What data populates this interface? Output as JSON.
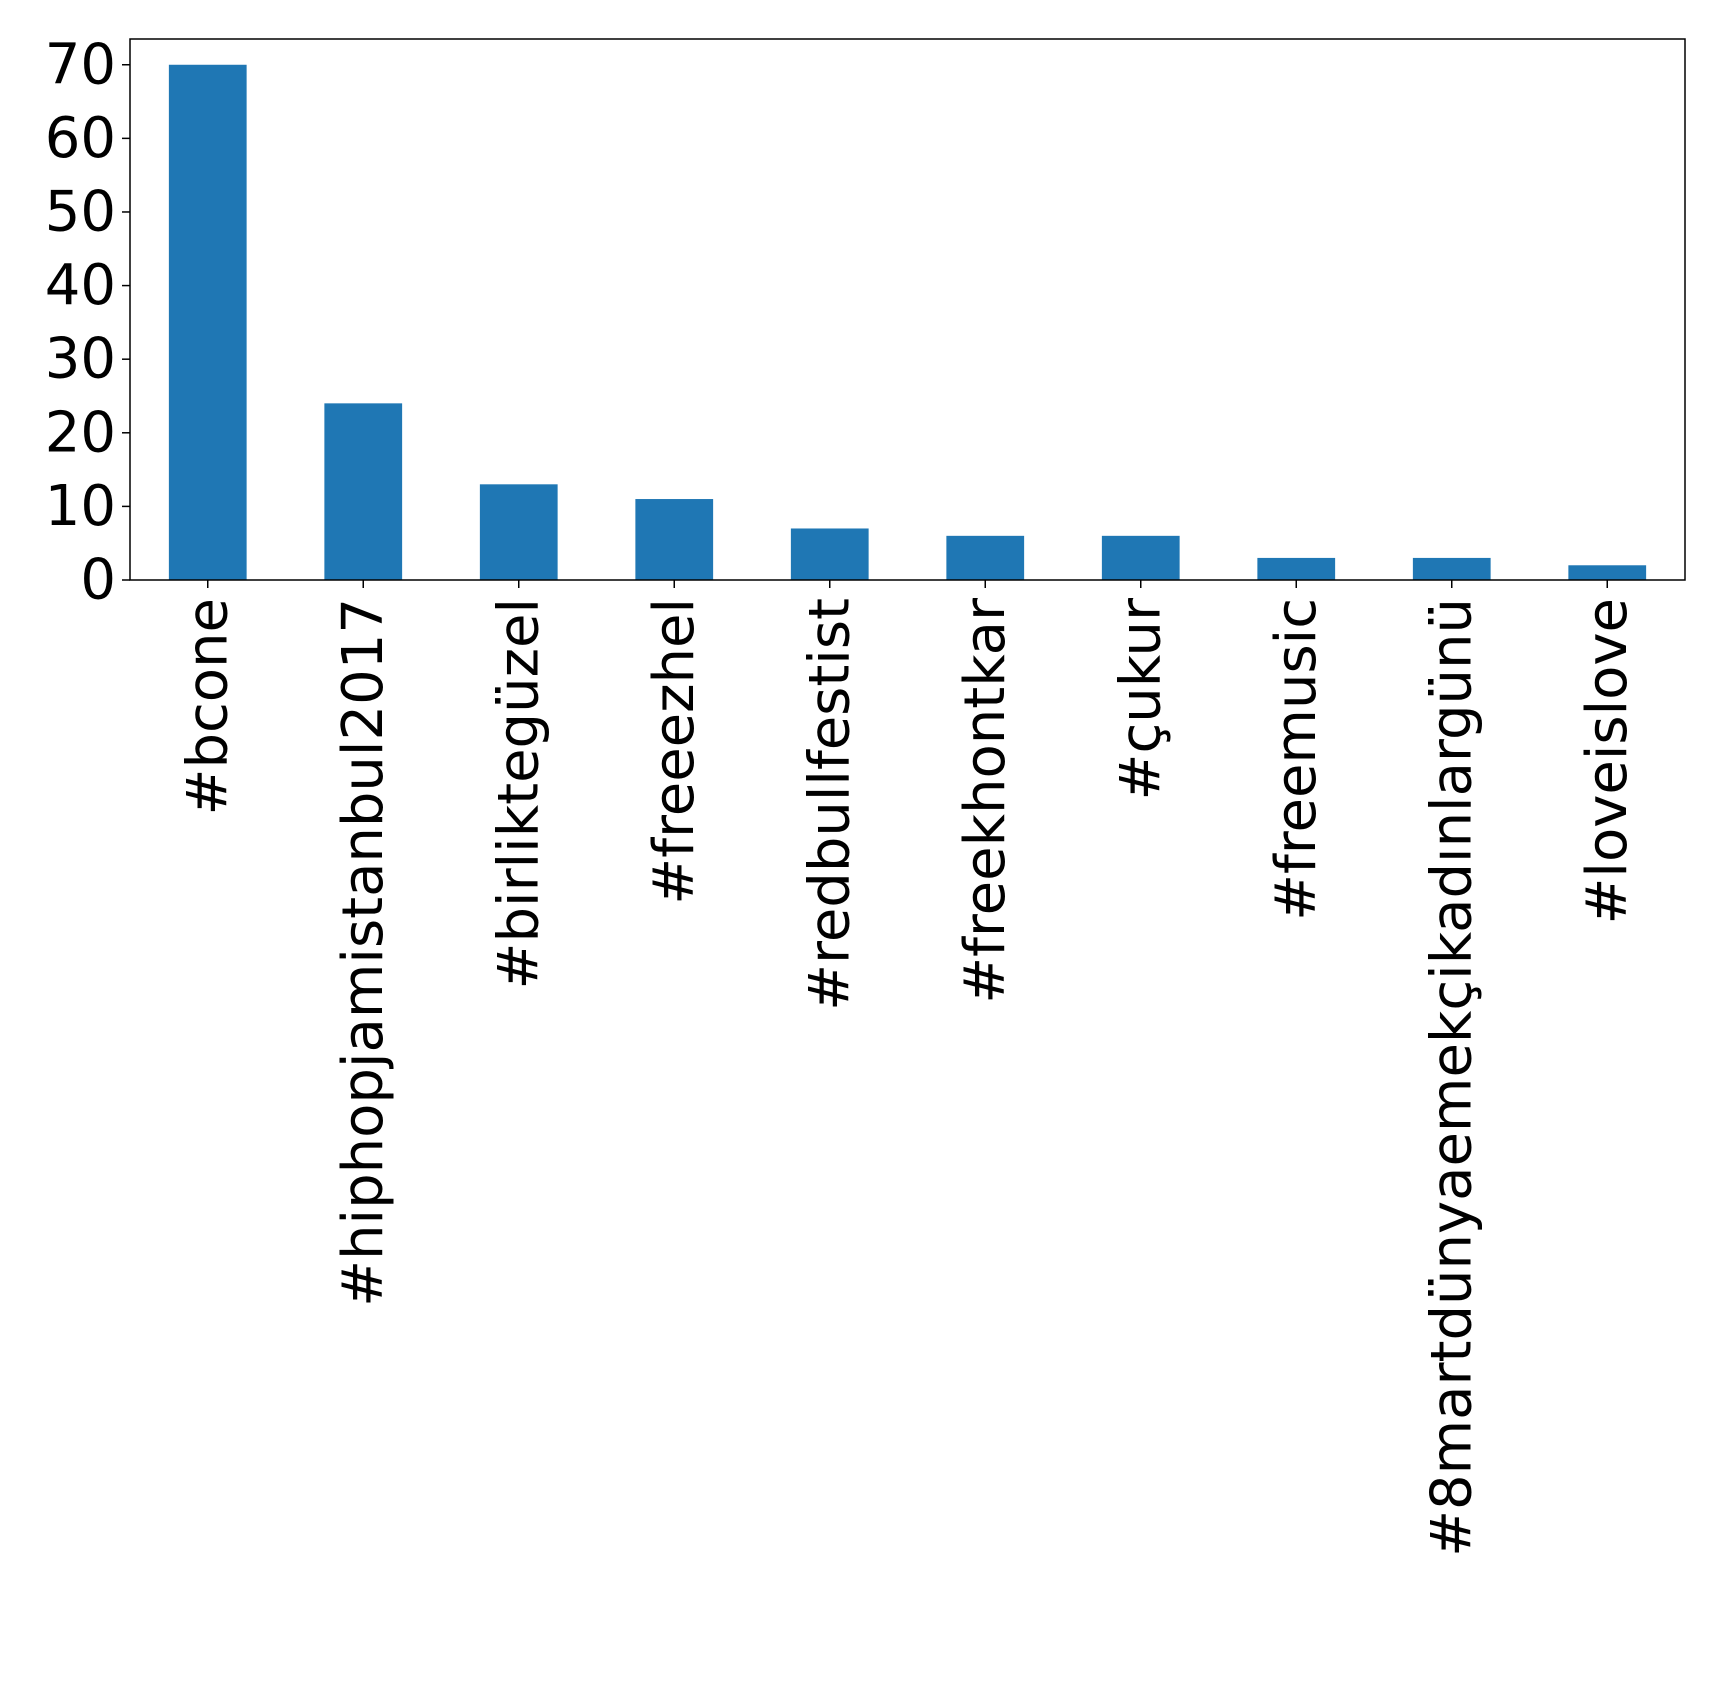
{
  "chart_data": {
    "type": "bar",
    "title": "",
    "xlabel": "",
    "ylabel": "",
    "categories": [
      "#bcone",
      "#hiphopjamistanbul2017",
      "#birliktegüzel",
      "#freeezhel",
      "#redbullfestist",
      "#freekhontkar",
      "#çukur",
      "#freemusic",
      "#8martdünyaemekçikadınlargünü",
      "#loveislove"
    ],
    "values": [
      70,
      24,
      13,
      11,
      7,
      6,
      6,
      3,
      3,
      2
    ],
    "ylim": [
      0,
      73.5
    ],
    "yticks": [
      0,
      10,
      20,
      30,
      40,
      50,
      60,
      70
    ],
    "bar_color": "#1f77b4",
    "grid": false,
    "legend": "none"
  }
}
